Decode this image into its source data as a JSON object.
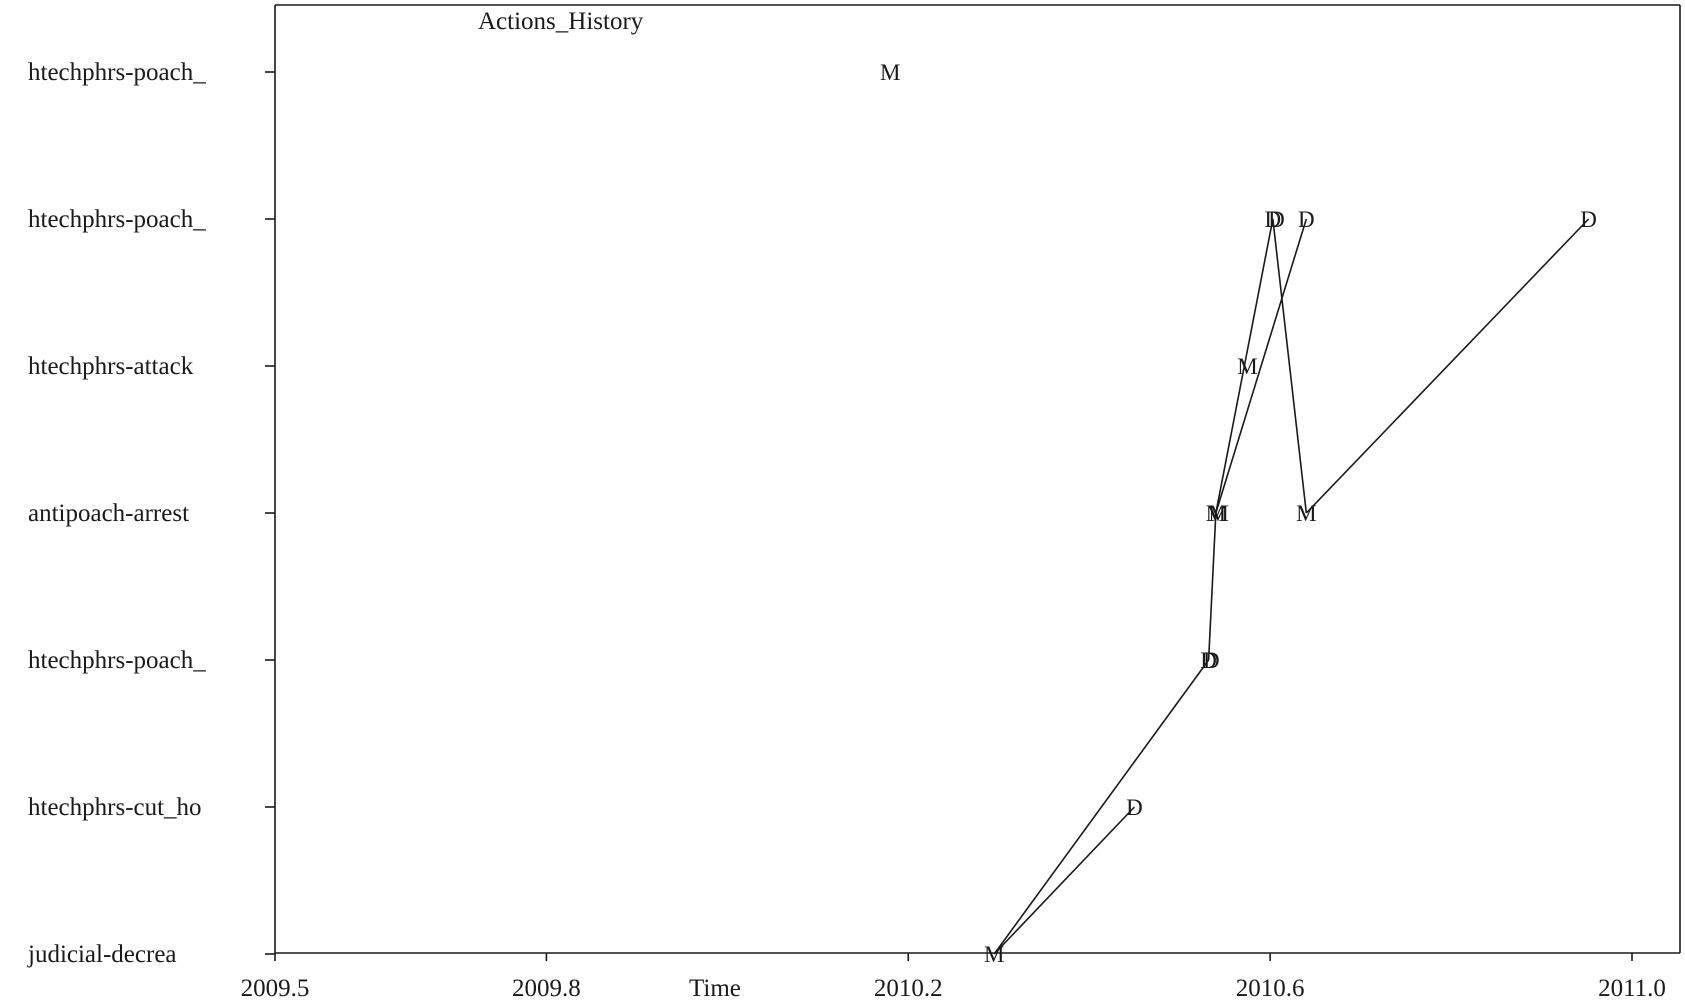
{
  "chart_data": {
    "type": "scatter",
    "title": "Actions_History",
    "xlabel": "Time",
    "ylabel": "",
    "xlim": [
      2009.5,
      2011.05
    ],
    "x_ticks": [
      2009.5,
      2009.8,
      2010.2,
      2010.6,
      2011.0
    ],
    "x_tick_labels": [
      "2009.5",
      "2009.8",
      "2010.2",
      "2010.6",
      "2011.0"
    ],
    "categories": [
      "htechphrs-poach_",
      "htechphrs-poach_",
      "htechphrs-attack",
      "antipoach-arrest",
      "htechphrs-poach_",
      "htechphrs-cut_ho",
      "judicial-decrea"
    ],
    "points": [
      {
        "x": 2010.18,
        "row": 0,
        "label": "M"
      },
      {
        "x": 2010.603,
        "row": 1,
        "label": "D"
      },
      {
        "x": 2010.607,
        "row": 1,
        "label": "D"
      },
      {
        "x": 2010.64,
        "row": 1,
        "label": "D"
      },
      {
        "x": 2010.952,
        "row": 1,
        "label": "D"
      },
      {
        "x": 2010.575,
        "row": 2,
        "label": "M"
      },
      {
        "x": 2010.54,
        "row": 3,
        "label": "M"
      },
      {
        "x": 2010.543,
        "row": 3,
        "label": "M"
      },
      {
        "x": 2010.64,
        "row": 3,
        "label": "M"
      },
      {
        "x": 2010.532,
        "row": 4,
        "label": "D"
      },
      {
        "x": 2010.535,
        "row": 4,
        "label": "D"
      },
      {
        "x": 2010.45,
        "row": 5,
        "label": "D"
      },
      {
        "x": 2010.295,
        "row": 6,
        "label": "M"
      }
    ],
    "connections": [
      [
        {
          "x": 2010.295,
          "row": 6
        },
        {
          "x": 2010.532,
          "row": 4
        }
      ],
      [
        {
          "x": 2010.295,
          "row": 6
        },
        {
          "x": 2010.45,
          "row": 5
        }
      ],
      [
        {
          "x": 2010.532,
          "row": 4
        },
        {
          "x": 2010.54,
          "row": 3
        }
      ],
      [
        {
          "x": 2010.54,
          "row": 3
        },
        {
          "x": 2010.603,
          "row": 1
        }
      ],
      [
        {
          "x": 2010.54,
          "row": 3
        },
        {
          "x": 2010.64,
          "row": 1
        }
      ],
      [
        {
          "x": 2010.603,
          "row": 1
        },
        {
          "x": 2010.64,
          "row": 3
        }
      ],
      [
        {
          "x": 2010.64,
          "row": 3
        },
        {
          "x": 2010.952,
          "row": 1
        }
      ]
    ],
    "grid": false,
    "legend": "none"
  }
}
